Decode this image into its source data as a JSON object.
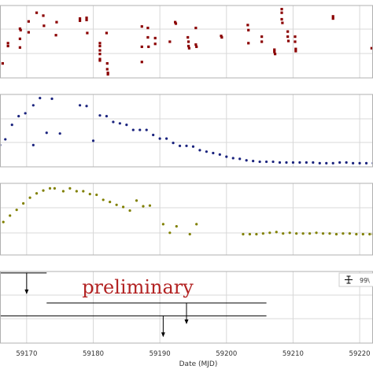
{
  "chart_data": {
    "type": "scatter",
    "xlabel": "Date (MJD)",
    "xlim": [
      59166,
      59222
    ],
    "x_ticks": [
      59170,
      59180,
      59190,
      59200,
      59210,
      59220
    ],
    "watermark": "preliminary",
    "panels": [
      {
        "name": "",
        "color": "#8b0000",
        "marker": "square",
        "ylim": [
          0,
          1
        ],
        "points": [
          [
            59166.4,
            0.2
          ],
          [
            59167.2,
            0.48
          ],
          [
            59167.2,
            0.44
          ],
          [
            59169.0,
            0.68
          ],
          [
            59169.0,
            0.54
          ],
          [
            59169.0,
            0.42
          ],
          [
            59169.1,
            0.66
          ],
          [
            59170.3,
            0.78
          ],
          [
            59170.3,
            0.63
          ],
          [
            59171.5,
            0.9
          ],
          [
            59172.5,
            0.86
          ],
          [
            59172.6,
            0.72
          ],
          [
            59174.4,
            0.59
          ],
          [
            59174.5,
            0.77
          ],
          [
            59178.0,
            0.82
          ],
          [
            59178.0,
            0.79
          ],
          [
            59179.0,
            0.83
          ],
          [
            59179.0,
            0.8
          ],
          [
            59179.1,
            0.62
          ],
          [
            59181.0,
            0.48
          ],
          [
            59181.0,
            0.44
          ],
          [
            59181.0,
            0.38
          ],
          [
            59181.0,
            0.33
          ],
          [
            59181.0,
            0.26
          ],
          [
            59181.0,
            0.24
          ],
          [
            59182.0,
            0.62
          ],
          [
            59182.1,
            0.2
          ],
          [
            59182.1,
            0.12
          ],
          [
            59182.2,
            0.07
          ],
          [
            59182.2,
            0.05
          ],
          [
            59187.3,
            0.71
          ],
          [
            59187.3,
            0.43
          ],
          [
            59187.3,
            0.22
          ],
          [
            59188.2,
            0.69
          ],
          [
            59188.2,
            0.56
          ],
          [
            59188.3,
            0.43
          ],
          [
            59189.3,
            0.55
          ],
          [
            59189.3,
            0.47
          ],
          [
            59191.5,
            0.5
          ],
          [
            59192.3,
            0.77
          ],
          [
            59192.4,
            0.75
          ],
          [
            59194.2,
            0.56
          ],
          [
            59194.3,
            0.5
          ],
          [
            59194.3,
            0.44
          ],
          [
            59194.4,
            0.41
          ],
          [
            59195.4,
            0.69
          ],
          [
            59195.4,
            0.46
          ],
          [
            59195.5,
            0.43
          ],
          [
            59199.2,
            0.58
          ],
          [
            59199.3,
            0.56
          ],
          [
            59203.2,
            0.73
          ],
          [
            59203.3,
            0.66
          ],
          [
            59203.3,
            0.48
          ],
          [
            59205.3,
            0.57
          ],
          [
            59205.3,
            0.5
          ],
          [
            59207.2,
            0.39
          ],
          [
            59207.2,
            0.36
          ],
          [
            59207.3,
            0.33
          ],
          [
            59208.3,
            0.95
          ],
          [
            59208.3,
            0.9
          ],
          [
            59208.3,
            0.81
          ],
          [
            59208.4,
            0.76
          ],
          [
            59209.2,
            0.64
          ],
          [
            59209.2,
            0.57
          ],
          [
            59209.3,
            0.51
          ],
          [
            59210.3,
            0.57
          ],
          [
            59210.3,
            0.5
          ],
          [
            59210.4,
            0.4
          ],
          [
            59210.4,
            0.37
          ],
          [
            59216.0,
            0.85
          ],
          [
            59216.0,
            0.82
          ],
          [
            59221.8,
            0.41
          ],
          [
            59222.2,
            0.41
          ]
        ]
      },
      {
        "name": "",
        "color": "#1a237e",
        "marker": "circle",
        "ylim": [
          0,
          1
        ],
        "points": [
          [
            59166.0,
            0.3
          ],
          [
            59166.8,
            0.38
          ],
          [
            59167.8,
            0.58
          ],
          [
            59168.8,
            0.7
          ],
          [
            59169.8,
            0.74
          ],
          [
            59171.0,
            0.85
          ],
          [
            59171.0,
            0.3
          ],
          [
            59172.0,
            0.95
          ],
          [
            59173.0,
            0.47
          ],
          [
            59173.8,
            0.94
          ],
          [
            59175.0,
            0.46
          ],
          [
            59178.0,
            0.85
          ],
          [
            59179.0,
            0.84
          ],
          [
            59180.0,
            0.36
          ],
          [
            59181.0,
            0.71
          ],
          [
            59182.0,
            0.7
          ],
          [
            59183.0,
            0.62
          ],
          [
            59184.0,
            0.6
          ],
          [
            59185.0,
            0.58
          ],
          [
            59186.0,
            0.51
          ],
          [
            59187.0,
            0.51
          ],
          [
            59188.0,
            0.51
          ],
          [
            59189.0,
            0.44
          ],
          [
            59190.0,
            0.39
          ],
          [
            59191.0,
            0.39
          ],
          [
            59192.0,
            0.33
          ],
          [
            59193.0,
            0.29
          ],
          [
            59194.0,
            0.29
          ],
          [
            59195.0,
            0.28
          ],
          [
            59196.0,
            0.23
          ],
          [
            59197.0,
            0.21
          ],
          [
            59198.0,
            0.19
          ],
          [
            59199.0,
            0.17
          ],
          [
            59200.0,
            0.14
          ],
          [
            59201.0,
            0.12
          ],
          [
            59202.0,
            0.11
          ],
          [
            59203.0,
            0.09
          ],
          [
            59204.0,
            0.08
          ],
          [
            59205.0,
            0.07
          ],
          [
            59206.0,
            0.07
          ],
          [
            59207.0,
            0.07
          ],
          [
            59208.0,
            0.06
          ],
          [
            59209.0,
            0.06
          ],
          [
            59210.0,
            0.06
          ],
          [
            59211.0,
            0.06
          ],
          [
            59212.0,
            0.06
          ],
          [
            59213.0,
            0.06
          ],
          [
            59214.0,
            0.05
          ],
          [
            59215.0,
            0.05
          ],
          [
            59216.0,
            0.05
          ],
          [
            59217.0,
            0.06
          ],
          [
            59218.0,
            0.06
          ],
          [
            59219.0,
            0.05
          ],
          [
            59220.0,
            0.05
          ],
          [
            59221.0,
            0.05
          ],
          [
            59222.0,
            0.05
          ]
        ]
      },
      {
        "name": "",
        "color": "#808000",
        "marker": "circle",
        "ylim": [
          0,
          1
        ],
        "points": [
          [
            59166.5,
            0.46
          ],
          [
            59167.5,
            0.55
          ],
          [
            59168.5,
            0.63
          ],
          [
            59169.5,
            0.72
          ],
          [
            59170.5,
            0.8
          ],
          [
            59171.5,
            0.86
          ],
          [
            59172.5,
            0.9
          ],
          [
            59173.5,
            0.93
          ],
          [
            59174.2,
            0.93
          ],
          [
            59175.5,
            0.89
          ],
          [
            59176.5,
            0.93
          ],
          [
            59177.5,
            0.89
          ],
          [
            59178.5,
            0.89
          ],
          [
            59179.5,
            0.85
          ],
          [
            59180.5,
            0.84
          ],
          [
            59181.5,
            0.77
          ],
          [
            59182.5,
            0.74
          ],
          [
            59183.5,
            0.7
          ],
          [
            59184.5,
            0.67
          ],
          [
            59185.5,
            0.62
          ],
          [
            59186.5,
            0.76
          ],
          [
            59187.5,
            0.68
          ],
          [
            59188.5,
            0.69
          ],
          [
            59190.5,
            0.43
          ],
          [
            59191.5,
            0.31
          ],
          [
            59192.5,
            0.4
          ],
          [
            59194.5,
            0.29
          ],
          [
            59195.5,
            0.43
          ],
          [
            59202.5,
            0.29
          ],
          [
            59203.5,
            0.29
          ],
          [
            59204.5,
            0.29
          ],
          [
            59205.5,
            0.3
          ],
          [
            59206.5,
            0.31
          ],
          [
            59207.5,
            0.32
          ],
          [
            59208.5,
            0.3
          ],
          [
            59209.5,
            0.31
          ],
          [
            59210.5,
            0.3
          ],
          [
            59211.5,
            0.3
          ],
          [
            59212.5,
            0.3
          ],
          [
            59213.5,
            0.31
          ],
          [
            59214.5,
            0.3
          ],
          [
            59215.5,
            0.3
          ],
          [
            59216.5,
            0.29
          ],
          [
            59217.5,
            0.3
          ],
          [
            59218.5,
            0.3
          ],
          [
            59219.5,
            0.29
          ],
          [
            59220.5,
            0.29
          ],
          [
            59221.5,
            0.29
          ],
          [
            59222.0,
            0.29
          ]
        ]
      },
      {
        "name": "",
        "color": "#000000",
        "marker": "upper-limit",
        "ylim": [
          0,
          1
        ],
        "legend_label": "99\\",
        "limits": [
          {
            "x": 59170.0,
            "x_start": 59166.0,
            "x_end": 59173.0,
            "y": 0.98
          },
          {
            "x": 59194.0,
            "x_start": 59173.0,
            "x_end": 59206.0,
            "y": 0.56
          },
          {
            "x": 59190.5,
            "x_start": 59166.0,
            "x_end": 59206.0,
            "y": 0.38
          }
        ]
      }
    ]
  }
}
